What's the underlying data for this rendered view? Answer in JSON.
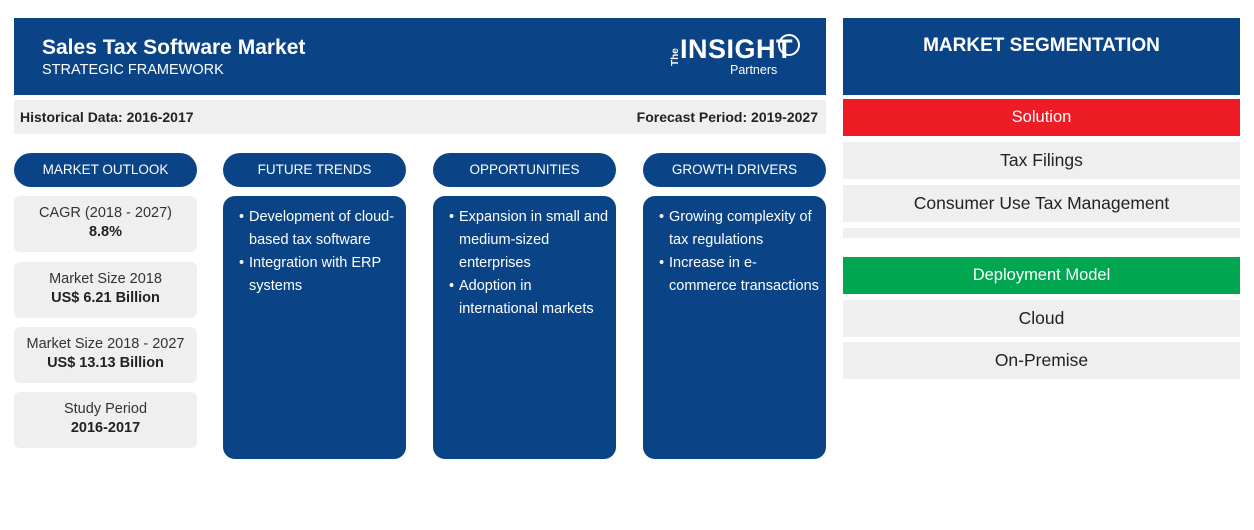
{
  "header": {
    "title": "Sales Tax Software Market",
    "subtitle": "STRATEGIC FRAMEWORK",
    "logo": {
      "the": "The",
      "main": "INSIGHT",
      "sub": "Partners"
    }
  },
  "period": {
    "historical": "Historical Data: 2016-2017",
    "forecast": "Forecast Period: 2019-2027"
  },
  "columns": {
    "market_outlook": "MARKET OUTLOOK",
    "future_trends": "FUTURE TRENDS",
    "opportunities": "OPPORTUNITIES",
    "growth_drivers": "GROWTH DRIVERS"
  },
  "outlook": [
    {
      "label": "CAGR (2018 - 2027)",
      "value": "8.8%"
    },
    {
      "label": "Market Size 2018",
      "value": "US$ 6.21 Billion"
    },
    {
      "label": "Market Size 2018 - 2027",
      "value": "US$ 13.13 Billion"
    },
    {
      "label": "Study Period",
      "value": "2016-2017"
    }
  ],
  "future_trends": [
    "Development of cloud-based tax software",
    "Integration with ERP systems"
  ],
  "opportunities": [
    "Expansion in small and medium-sized enterprises",
    "Adoption in international markets"
  ],
  "growth_drivers": [
    "Growing complexity of tax regulations",
    "Increase in e-commerce transactions"
  ],
  "segmentation": {
    "title": "MARKET SEGMENTATION",
    "solution": {
      "label": "Solution",
      "color": "#ee1c25",
      "items": [
        "Tax Filings",
        "Consumer Use Tax Management"
      ]
    },
    "deployment": {
      "label": "Deployment Model",
      "color": "#00a650",
      "items": [
        "Cloud",
        "On-Premise"
      ]
    }
  },
  "colors": {
    "primary": "#0a4487",
    "panel_bg": "#efefef"
  }
}
